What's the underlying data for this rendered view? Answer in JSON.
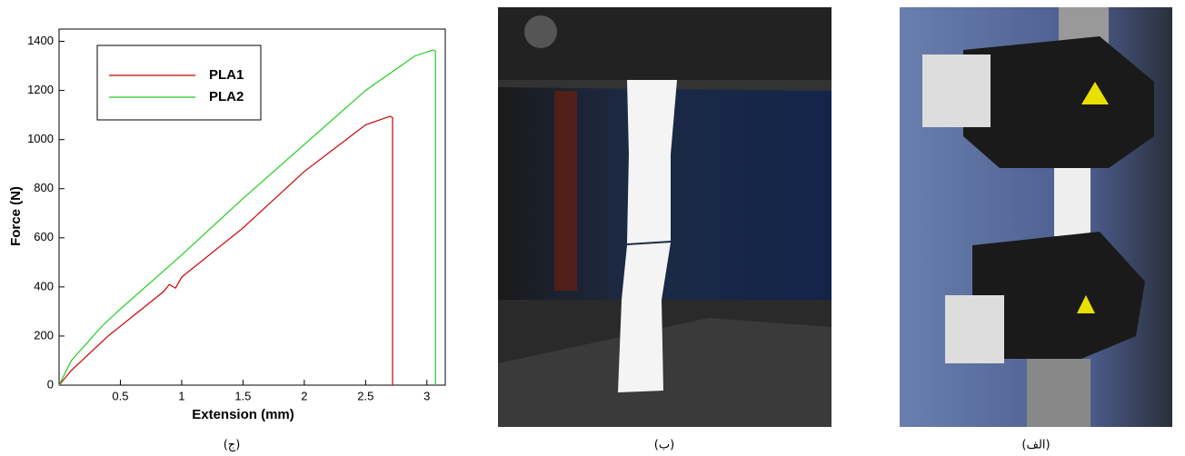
{
  "chart_data": {
    "type": "line",
    "xlabel": "Extension (mm)",
    "ylabel": "Force (N)",
    "xlim": [
      0,
      3.15
    ],
    "ylim": [
      0,
      1450
    ],
    "xticks": [
      0.5,
      1,
      1.5,
      2,
      2.5,
      3
    ],
    "yticks": [
      0,
      200,
      400,
      600,
      800,
      1000,
      1200,
      1400
    ],
    "legend": "upper-left",
    "series": [
      {
        "name": "PLA1",
        "color": "#cc0000",
        "x": [
          0,
          0.1,
          0.4,
          0.85,
          0.9,
          0.95,
          1.0,
          1.5,
          2.0,
          2.5,
          2.7,
          2.72,
          2.72
        ],
        "values": [
          0,
          60,
          200,
          380,
          410,
          395,
          440,
          640,
          870,
          1060,
          1095,
          1090,
          0
        ]
      },
      {
        "name": "PLA2",
        "color": "#22cc22",
        "x": [
          0,
          0.1,
          0.35,
          0.5,
          1.0,
          1.5,
          2.0,
          2.5,
          2.9,
          3.05,
          3.07,
          3.07
        ],
        "values": [
          0,
          100,
          240,
          310,
          530,
          760,
          980,
          1200,
          1340,
          1365,
          1360,
          0
        ]
      }
    ]
  },
  "captions": [
    "(ج)",
    "(ب)",
    "(الف)"
  ]
}
